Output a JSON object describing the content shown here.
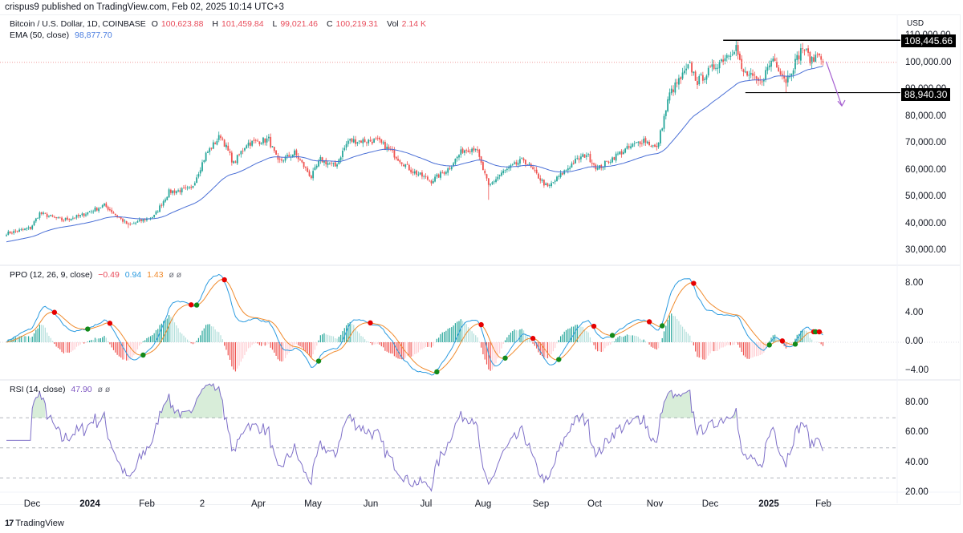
{
  "header": {
    "published": "crispus9 published on TradingView.com, Feb 02, 2025 10:14 UTC+3"
  },
  "main_legend": {
    "symbol": "Bitcoin / U.S. Dollar, 1D, COINBASE",
    "o_label": "O",
    "o_value": "100,623.88",
    "h_label": "H",
    "h_value": "101,459.84",
    "l_label": "L",
    "l_value": "99,021.46",
    "c_label": "C",
    "c_value": "100,219.31",
    "vol_label": "Vol",
    "vol_value": "2.14 K",
    "ema_label": "EMA (50, close)",
    "ema_value": "98,877.70"
  },
  "ppo_legend": {
    "label": "PPO (12, 26, 9, close)",
    "hist_value": "−0.49",
    "ppo_value": "0.94",
    "signal_value": "1.43",
    "icons": "ø ø"
  },
  "rsi_legend": {
    "label": "RSI (14, close)",
    "value": "47.90",
    "icons": "ø ø"
  },
  "price_axis": {
    "currency": "USD",
    "ticks": [
      "110,000.00",
      "100,000.00",
      "90,000.00",
      "80,000.00",
      "70,000.00",
      "60,000.00",
      "50,000.00",
      "40,000.00",
      "30,000.00"
    ],
    "tags": [
      "108,445.66",
      "88,940.30"
    ]
  },
  "ppo_axis": {
    "ticks": [
      "8.00",
      "4.00",
      "0.00",
      "−4.00"
    ]
  },
  "rsi_axis": {
    "ticks": [
      "80.00",
      "60.00",
      "40.00",
      "20.00"
    ]
  },
  "time_axis": {
    "labels": [
      {
        "text": "Dec",
        "bold": false
      },
      {
        "text": "2024",
        "bold": true
      },
      {
        "text": "Feb",
        "bold": false
      },
      {
        "text": "2",
        "bold": false
      },
      {
        "text": "Apr",
        "bold": false
      },
      {
        "text": "May",
        "bold": false
      },
      {
        "text": "Jun",
        "bold": false
      },
      {
        "text": "Jul",
        "bold": false
      },
      {
        "text": "Aug",
        "bold": false
      },
      {
        "text": "Sep",
        "bold": false
      },
      {
        "text": "Oct",
        "bold": false
      },
      {
        "text": "Nov",
        "bold": false
      },
      {
        "text": "Dec",
        "bold": false
      },
      {
        "text": "2025",
        "bold": true
      },
      {
        "text": "Feb",
        "bold": false
      }
    ]
  },
  "footer": {
    "brand": "TradingView",
    "brand_mark": "17"
  },
  "colors": {
    "up": "#26a69a",
    "down": "#ef5350",
    "ema": "#4a6fd6",
    "ppo": "#2b9be0",
    "signal": "#f08a2c",
    "rsi": "#7e6fc8",
    "cross_up": "#138a1a",
    "cross_down": "#e60000",
    "arrow": "#a55fd0"
  },
  "chart_data": [
    {
      "type": "candlestick",
      "title": "Bitcoin / U.S. Dollar, 1D, COINBASE",
      "ylabel": "USD",
      "ylim": [
        30000,
        110000
      ],
      "x_range": [
        "2023-11-18",
        "2025-02-02"
      ],
      "anchors_close": [
        [
          "2023-11-18",
          36500
        ],
        [
          "2023-12-01",
          38500
        ],
        [
          "2023-12-06",
          44000
        ],
        [
          "2023-12-18",
          41500
        ],
        [
          "2023-12-28",
          43000
        ],
        [
          "2024-01-10",
          47000
        ],
        [
          "2024-01-23",
          39500
        ],
        [
          "2024-02-06",
          43000
        ],
        [
          "2024-02-14",
          52000
        ],
        [
          "2024-02-26",
          53000
        ],
        [
          "2024-03-05",
          66000
        ],
        [
          "2024-03-13",
          73000
        ],
        [
          "2024-03-20",
          62500
        ],
        [
          "2024-03-27",
          70000
        ],
        [
          "2024-04-08",
          71500
        ],
        [
          "2024-04-13",
          63000
        ],
        [
          "2024-04-22",
          66500
        ],
        [
          "2024-05-01",
          57500
        ],
        [
          "2024-05-06",
          64000
        ],
        [
          "2024-05-14",
          61500
        ],
        [
          "2024-05-21",
          71000
        ],
        [
          "2024-06-06",
          71000
        ],
        [
          "2024-06-14",
          66500
        ],
        [
          "2024-06-24",
          60000
        ],
        [
          "2024-07-05",
          56000
        ],
        [
          "2024-07-14",
          60500
        ],
        [
          "2024-07-22",
          67500
        ],
        [
          "2024-07-29",
          68500
        ],
        [
          "2024-08-05",
          54000
        ],
        [
          "2024-08-12",
          59000
        ],
        [
          "2024-08-24",
          64000
        ],
        [
          "2024-09-06",
          53500
        ],
        [
          "2024-09-20",
          63000
        ],
        [
          "2024-09-27",
          66000
        ],
        [
          "2024-10-03",
          60500
        ],
        [
          "2024-10-14",
          66000
        ],
        [
          "2024-10-28",
          71500
        ],
        [
          "2024-11-04",
          68000
        ],
        [
          "2024-11-11",
          88500
        ],
        [
          "2024-11-22",
          99000
        ],
        [
          "2024-11-26",
          93000
        ],
        [
          "2024-12-05",
          98500
        ],
        [
          "2024-12-17",
          106200
        ],
        [
          "2024-12-20",
          97000
        ],
        [
          "2024-12-30",
          92500
        ],
        [
          "2025-01-06",
          102000
        ],
        [
          "2025-01-13",
          93500
        ],
        [
          "2025-01-20",
          103000
        ],
        [
          "2025-01-22",
          106000
        ],
        [
          "2025-01-27",
          100500
        ],
        [
          "2025-01-31",
          104500
        ],
        [
          "2025-02-02",
          100219
        ]
      ],
      "last": {
        "open": 100623.88,
        "high": 101459.84,
        "low": 99021.46,
        "close": 100219.31
      },
      "overlays": [
        {
          "name": "EMA (50, close)",
          "last": 98877.7
        },
        {
          "name": "resistance",
          "value": 108445.66,
          "from": "2024-12-10",
          "to": "2025-02-02"
        },
        {
          "name": "support",
          "value": 88940.3,
          "from": "2024-12-22",
          "to": "2025-02-02"
        },
        {
          "name": "projection-arrow",
          "from": [
            "2025-02-02",
            100500
          ],
          "to": [
            "2025-02-09",
            84000
          ]
        }
      ]
    },
    {
      "type": "line",
      "title": "PPO (12, 26, 9, close)",
      "ylim": [
        -5,
        9
      ],
      "series": [
        {
          "name": "PPO"
        },
        {
          "name": "Signal"
        },
        {
          "name": "Histogram"
        }
      ],
      "last": {
        "histogram": -0.49,
        "ppo": 0.94,
        "signal": 1.43
      }
    },
    {
      "type": "line",
      "title": "RSI (14, close)",
      "ylim": [
        20,
        90
      ],
      "bands": [
        30,
        50,
        70
      ],
      "last": 47.9
    }
  ]
}
